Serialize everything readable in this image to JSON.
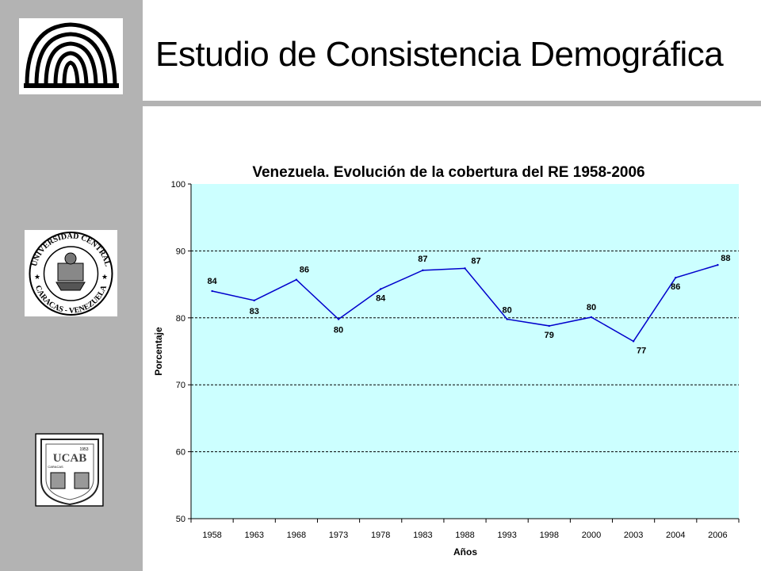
{
  "page": {
    "title": "Estudio de Consistencia Demográfica"
  },
  "logos": {
    "logo1": "dome-logo",
    "logo2_text_top": "UNIVERSIDAD CENTRAL",
    "logo2_text_bottom": "CARACAS - VENEZUELA",
    "logo3_text": "UCAB",
    "logo3_year": "1953",
    "logo3_city": "CARACAS"
  },
  "colors": {
    "sidebar": "#b3b3b3",
    "plot_bg": "#ccffff",
    "line": "#0000cc"
  },
  "chart_data": {
    "type": "line",
    "title": "Venezuela. Evolución de la cobertura del RE 1958-2006",
    "xlabel": "Años",
    "ylabel": "Porcentaje",
    "ylim": [
      50,
      100
    ],
    "yticks": [
      "50",
      "60",
      "70",
      "80",
      "90",
      "100"
    ],
    "grid": true,
    "categories": [
      "1958",
      "1963",
      "1968",
      "1973",
      "1978",
      "1983",
      "1988",
      "1993",
      "1998",
      "2000",
      "2003",
      "2004",
      "2006"
    ],
    "series": [
      {
        "values": [
          84,
          82.6,
          85.7,
          79.8,
          84.3,
          87.1,
          87.4,
          79.8,
          78.8,
          80.1,
          76.5,
          86,
          87.9
        ],
        "labels": [
          "84",
          "83",
          "86",
          "80",
          "84",
          "87",
          "87",
          "80",
          "79",
          "80",
          "77",
          "86",
          "88"
        ]
      }
    ]
  }
}
